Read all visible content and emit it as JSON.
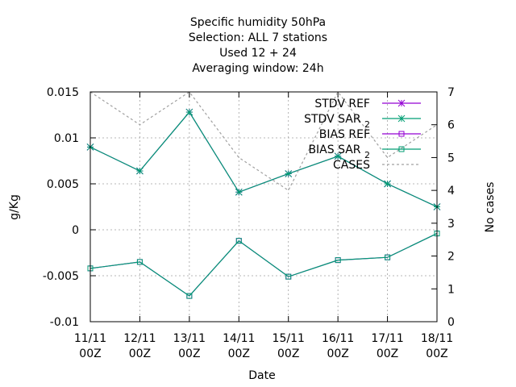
{
  "chart_data": {
    "type": "line",
    "title_lines": [
      "Specific humidity 50hPa",
      "Selection: ALL      7 stations",
      "Used  12 + 24",
      "Averaging window: 24h"
    ],
    "xlabel": "Date",
    "ylabel": "g/Kg",
    "y2label": "No cases",
    "categories": [
      [
        "11/11",
        "00Z"
      ],
      [
        "12/11",
        "00Z"
      ],
      [
        "13/11",
        "00Z"
      ],
      [
        "14/11",
        "00Z"
      ],
      [
        "15/11",
        "00Z"
      ],
      [
        "16/11",
        "00Z"
      ],
      [
        "17/11",
        "00Z"
      ],
      [
        "18/11",
        "00Z"
      ]
    ],
    "ylim": [
      -0.01,
      0.015
    ],
    "yticks": [
      "0.015",
      "0.01",
      "0.005",
      "0",
      "-0.005",
      "-0.01"
    ],
    "y2lim": [
      0,
      7
    ],
    "y2ticks": [
      "7",
      "6",
      "5",
      "4",
      "3",
      "2",
      "1",
      "0"
    ],
    "grid": true,
    "legend_position": "top-right",
    "series": [
      {
        "name": "STDV REF",
        "sub": "",
        "axis": "y",
        "marker": "star",
        "color": "#9400d3",
        "dashed": false,
        "values": [
          0.009,
          0.0064,
          0.0128,
          0.0041,
          0.0061,
          0.008,
          0.005,
          0.0025
        ]
      },
      {
        "name": "STDV SAR",
        "sub": "2",
        "axis": "y",
        "marker": "star",
        "color": "#009e73",
        "dashed": false,
        "values": [
          0.009,
          0.0064,
          0.0128,
          0.0041,
          0.0061,
          0.008,
          0.005,
          0.0025
        ]
      },
      {
        "name": "BIAS REF",
        "sub": "",
        "axis": "y",
        "marker": "square",
        "color": "#9400d3",
        "dashed": false,
        "values": [
          -0.0042,
          -0.0035,
          -0.0072,
          -0.0012,
          -0.0051,
          -0.0033,
          -0.003,
          -0.0004
        ]
      },
      {
        "name": "BIAS SAR",
        "sub": "2",
        "axis": "y",
        "marker": "square",
        "color": "#009e73",
        "dashed": false,
        "values": [
          -0.0042,
          -0.0035,
          -0.0072,
          -0.0012,
          -0.0051,
          -0.0033,
          -0.003,
          -0.0004
        ]
      },
      {
        "name": "CASES",
        "sub": "",
        "axis": "y2",
        "marker": "none",
        "color": "#a0a0a0",
        "dashed": true,
        "values": [
          7,
          6,
          7,
          5,
          4,
          7,
          5,
          6
        ]
      }
    ]
  }
}
